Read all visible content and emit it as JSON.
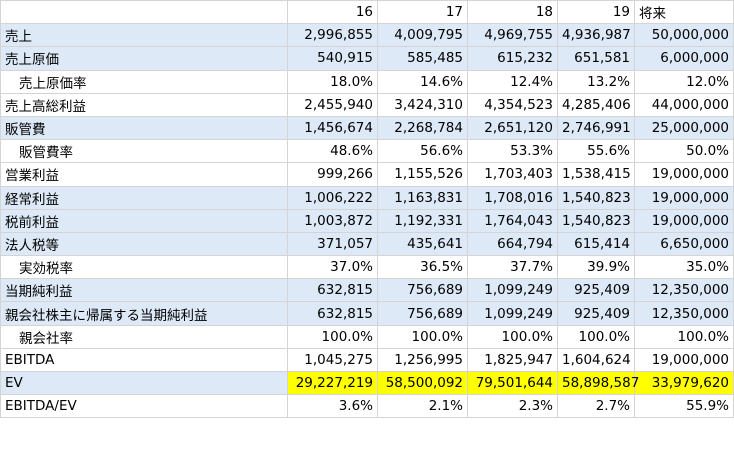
{
  "header": {
    "c1": "16",
    "c2": "17",
    "c3": "18",
    "c4": "19",
    "c5": "将来"
  },
  "rows": [
    {
      "label": "売上",
      "v": [
        "2,996,855",
        "4,009,795",
        "4,969,755",
        "4,936,987",
        "50,000,000"
      ]
    },
    {
      "label": "売上原価",
      "v": [
        "540,915",
        "585,485",
        "615,232",
        "651,581",
        "6,000,000"
      ]
    },
    {
      "label": "売上原価率",
      "v": [
        "18.0%",
        "14.6%",
        "12.4%",
        "13.2%",
        "12.0%"
      ]
    },
    {
      "label": "売上高総利益",
      "v": [
        "2,455,940",
        "3,424,310",
        "4,354,523",
        "4,285,406",
        "44,000,000"
      ]
    },
    {
      "label": "販管費",
      "v": [
        "1,456,674",
        "2,268,784",
        "2,651,120",
        "2,746,991",
        "25,000,000"
      ]
    },
    {
      "label": "販管費率",
      "v": [
        "48.6%",
        "56.6%",
        "53.3%",
        "55.6%",
        "50.0%"
      ]
    },
    {
      "label": "営業利益",
      "v": [
        "999,266",
        "1,155,526",
        "1,703,403",
        "1,538,415",
        "19,000,000"
      ]
    },
    {
      "label": "経常利益",
      "v": [
        "1,006,222",
        "1,163,831",
        "1,708,016",
        "1,540,823",
        "19,000,000"
      ]
    },
    {
      "label": "税前利益",
      "v": [
        "1,003,872",
        "1,192,331",
        "1,764,043",
        "1,540,823",
        "19,000,000"
      ]
    },
    {
      "label": "法人税等",
      "v": [
        "371,057",
        "435,641",
        "664,794",
        "615,414",
        "6,650,000"
      ]
    },
    {
      "label": "実効税率",
      "v": [
        "37.0%",
        "36.5%",
        "37.7%",
        "39.9%",
        "35.0%"
      ]
    },
    {
      "label": "当期純利益",
      "v": [
        "632,815",
        "756,689",
        "1,099,249",
        "925,409",
        "12,350,000"
      ]
    },
    {
      "label": "親会社株主に帰属する当期純利益",
      "v": [
        "632,815",
        "756,689",
        "1,099,249",
        "925,409",
        "12,350,000"
      ]
    },
    {
      "label": "親会社率",
      "v": [
        "100.0%",
        "100.0%",
        "100.0%",
        "100.0%",
        "100.0%"
      ]
    },
    {
      "label": "EBITDA",
      "v": [
        "1,045,275",
        "1,256,995",
        "1,825,947",
        "1,604,624",
        "19,000,000"
      ]
    },
    {
      "label": "EV",
      "v": [
        "29,227,219",
        "58,500,092",
        "79,501,644",
        "58,898,587",
        "33,979,620"
      ]
    },
    {
      "label": "EBITDA/EV",
      "v": [
        "3.6%",
        "2.1%",
        "2.3%",
        "2.7%",
        "55.9%"
      ]
    }
  ]
}
